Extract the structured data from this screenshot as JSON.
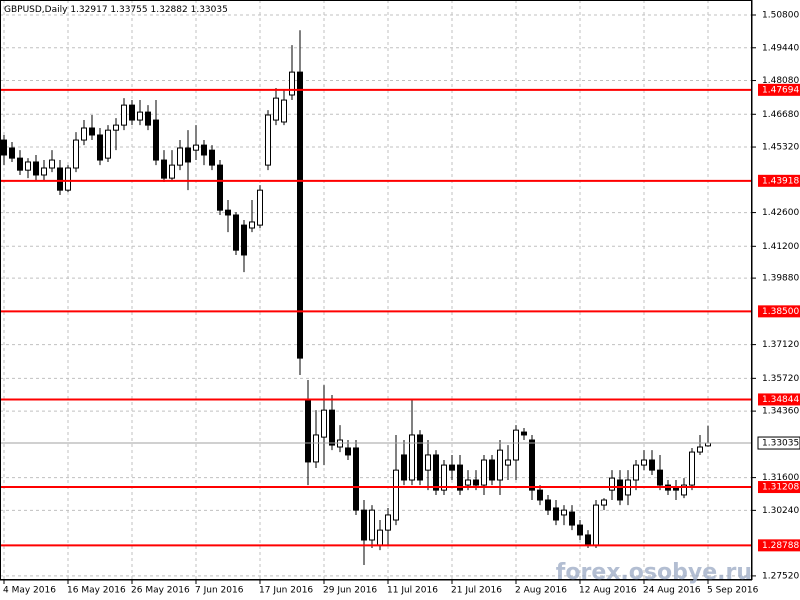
{
  "chart_data": {
    "type": "candlestick",
    "title": "GBPUSD,Daily",
    "watermark": "forex.osobye.ru",
    "categories": [
      "4 May 2016",
      null,
      null,
      null,
      null,
      null,
      null,
      null,
      "16 May 2016",
      null,
      null,
      null,
      null,
      null,
      null,
      null,
      "26 May 2016",
      null,
      null,
      null,
      null,
      null,
      null,
      null,
      "7 Jun 2016",
      null,
      null,
      null,
      null,
      null,
      null,
      null,
      "17 Jun 2016",
      null,
      null,
      null,
      null,
      null,
      null,
      null,
      "29 Jun 2016",
      null,
      null,
      null,
      null,
      null,
      null,
      null,
      "11 Jul 2016",
      null,
      null,
      null,
      null,
      null,
      null,
      null,
      "21 Jul 2016",
      null,
      null,
      null,
      null,
      null,
      null,
      null,
      "2 Aug 2016",
      null,
      null,
      null,
      null,
      null,
      null,
      null,
      "12 Aug 2016",
      null,
      null,
      null,
      null,
      null,
      null,
      null,
      "24 Aug 2016",
      null,
      null,
      null,
      null,
      null,
      null,
      null,
      "5 Sep 2016"
    ],
    "ohlc": [
      [
        1.4561,
        1.4582,
        1.4457,
        1.4499
      ],
      [
        1.4528,
        1.4553,
        1.447,
        1.4486
      ],
      [
        1.4486,
        1.4519,
        1.4416,
        1.4436
      ],
      [
        1.4436,
        1.4486,
        1.4403,
        1.447
      ],
      [
        1.447,
        1.4499,
        1.4395,
        1.4416
      ],
      [
        1.4416,
        1.4478,
        1.4395,
        1.4445
      ],
      [
        1.4445,
        1.4519,
        1.4428,
        1.4478
      ],
      [
        1.4445,
        1.4478,
        1.4333,
        1.4353
      ],
      [
        1.4353,
        1.4457,
        1.4345,
        1.4445
      ],
      [
        1.4445,
        1.4594,
        1.4428,
        1.4561
      ],
      [
        1.4561,
        1.4644,
        1.454,
        1.4611
      ],
      [
        1.4611,
        1.4665,
        1.4561,
        1.4582
      ],
      [
        1.4582,
        1.4611,
        1.4457,
        1.4478
      ],
      [
        1.4486,
        1.4623,
        1.447,
        1.4602
      ],
      [
        1.4602,
        1.4652,
        1.4519,
        1.4623
      ],
      [
        1.4623,
        1.4735,
        1.4602,
        1.4706
      ],
      [
        1.4706,
        1.4727,
        1.4623,
        1.4644
      ],
      [
        1.4644,
        1.4727,
        1.4623,
        1.4677
      ],
      [
        1.4677,
        1.4706,
        1.4602,
        1.4623
      ],
      [
        1.4644,
        1.4727,
        1.4457,
        1.4478
      ],
      [
        1.4478,
        1.4519,
        1.4387,
        1.4403
      ],
      [
        1.4403,
        1.4519,
        1.4395,
        1.4457
      ],
      [
        1.4457,
        1.4561,
        1.4436,
        1.4528
      ],
      [
        1.4528,
        1.4602,
        1.4353,
        1.447
      ],
      [
        1.4519,
        1.4623,
        1.4478,
        1.454
      ],
      [
        1.454,
        1.4561,
        1.4457,
        1.4499
      ],
      [
        1.4519,
        1.454,
        1.4436,
        1.4457
      ],
      [
        1.4457,
        1.4478,
        1.425,
        1.427
      ],
      [
        1.427,
        1.4312,
        1.4179,
        1.425
      ],
      [
        1.425,
        1.4262,
        1.4084,
        1.4104
      ],
      [
        1.4208,
        1.4229,
        1.4013,
        1.4084
      ],
      [
        1.4196,
        1.4312,
        1.4179,
        1.4221
      ],
      [
        1.4208,
        1.4374,
        1.4196,
        1.4353
      ],
      [
        1.4457,
        1.4685,
        1.4436,
        1.4665
      ],
      [
        1.4644,
        1.4777,
        1.4623,
        1.4735
      ],
      [
        1.4636,
        1.4768,
        1.4623,
        1.4727
      ],
      [
        1.4748,
        1.4955,
        1.4727,
        1.4843
      ],
      [
        1.4843,
        1.5017,
        1.3586,
        1.3656
      ],
      [
        1.3482,
        1.3565,
        1.3129,
        1.3225
      ],
      [
        1.3225,
        1.344,
        1.32,
        1.3337
      ],
      [
        1.3328,
        1.3544,
        1.3212,
        1.344
      ],
      [
        1.344,
        1.3503,
        1.3274,
        1.3295
      ],
      [
        1.3287,
        1.3378,
        1.3266,
        1.3316
      ],
      [
        1.3283,
        1.3316,
        1.3233,
        1.3254
      ],
      [
        1.3283,
        1.3316,
        1.3005,
        1.3025
      ],
      [
        1.3025,
        1.3067,
        1.2797,
        1.2901
      ],
      [
        1.2901,
        1.3046,
        1.2868,
        1.3025
      ],
      [
        1.288,
        1.2984,
        1.2859,
        1.2942
      ],
      [
        1.2942,
        1.3034,
        1.288,
        1.3005
      ],
      [
        1.2984,
        1.3337,
        1.2963,
        1.3191
      ],
      [
        1.3254,
        1.3316,
        1.3129,
        1.315
      ],
      [
        1.315,
        1.3482,
        1.3129,
        1.3337
      ],
      [
        1.3337,
        1.3357,
        1.3129,
        1.315
      ],
      [
        1.3191,
        1.3316,
        1.3108,
        1.3254
      ],
      [
        1.3254,
        1.3274,
        1.3088,
        1.3108
      ],
      [
        1.3108,
        1.3233,
        1.3088,
        1.3212
      ],
      [
        1.3212,
        1.3254,
        1.315,
        1.3191
      ],
      [
        1.3212,
        1.3254,
        1.3088,
        1.3108
      ],
      [
        1.3129,
        1.3191,
        1.3108,
        1.315
      ],
      [
        1.315,
        1.3191,
        1.3108,
        1.3129
      ],
      [
        1.3129,
        1.3254,
        1.3088,
        1.3233
      ],
      [
        1.3233,
        1.3254,
        1.3129,
        1.315
      ],
      [
        1.315,
        1.3316,
        1.3088,
        1.3274
      ],
      [
        1.3212,
        1.3295,
        1.315,
        1.3233
      ],
      [
        1.3233,
        1.3378,
        1.315,
        1.3357
      ],
      [
        1.3349,
        1.3366,
        1.3316,
        1.3337
      ],
      [
        1.3316,
        1.3337,
        1.3067,
        1.3108
      ],
      [
        1.3108,
        1.3129,
        1.3046,
        1.3067
      ],
      [
        1.3067,
        1.3088,
        1.3005,
        1.3025
      ],
      [
        1.3034,
        1.3067,
        1.2963,
        1.2984
      ],
      [
        1.3005,
        1.3046,
        1.2963,
        1.3025
      ],
      [
        1.3017,
        1.3046,
        1.2942,
        1.2963
      ],
      [
        1.2963,
        1.2984,
        1.2901,
        1.2922
      ],
      [
        1.2922,
        1.2942,
        1.2868,
        1.288
      ],
      [
        1.288,
        1.3067,
        1.2868,
        1.3046
      ],
      [
        1.3046,
        1.3075,
        1.3025,
        1.3067
      ],
      [
        1.3108,
        1.3191,
        1.3067,
        1.3158
      ],
      [
        1.315,
        1.3191,
        1.3046,
        1.3067
      ],
      [
        1.3088,
        1.3191,
        1.3046,
        1.315
      ],
      [
        1.315,
        1.3233,
        1.3108,
        1.3212
      ],
      [
        1.3212,
        1.3274,
        1.3191,
        1.3233
      ],
      [
        1.3233,
        1.3274,
        1.3171,
        1.3191
      ],
      [
        1.3191,
        1.3254,
        1.3108,
        1.3129
      ],
      [
        1.3129,
        1.315,
        1.3088,
        1.3108
      ],
      [
        1.3117,
        1.315,
        1.3067,
        1.3108
      ],
      [
        1.3088,
        1.3158,
        1.3075,
        1.3129
      ],
      [
        1.3129,
        1.3283,
        1.3108,
        1.3266
      ],
      [
        1.3266,
        1.3337,
        1.3254,
        1.3287
      ],
      [
        1.32917,
        1.33755,
        1.32882,
        1.33035
      ]
    ],
    "up_color": "#ffffff",
    "down_color": "#000000",
    "levels": [
      1.47694,
      1.43918,
      {
        "value": 1.385,
        "label": "1.38500"
      },
      1.34844,
      1.31208,
      1.28788
    ],
    "level_color": "#ff0000",
    "ylim": [
      1.2735,
      1.5134
    ],
    "yticks": [
      {
        "value": 1.508,
        "label": "1.50800"
      },
      {
        "value": 1.4944,
        "label": "1.49440"
      },
      {
        "value": 1.4808,
        "label": "1.48080"
      },
      {
        "value": 1.4668,
        "label": "1.46680"
      },
      {
        "value": 1.4532,
        "label": "1.45320"
      },
      {
        "value": 1.426,
        "label": "1.42600"
      },
      {
        "value": 1.412,
        "label": "1.41200"
      },
      {
        "value": 1.3988,
        "label": "1.39880"
      },
      {
        "value": 1.3712,
        "label": "1.37120"
      },
      {
        "value": 1.3572,
        "label": "1.35720"
      },
      {
        "value": 1.3436,
        "label": "1.34360"
      },
      {
        "value": 1.316,
        "label": "1.31600"
      },
      {
        "value": 1.3024,
        "label": "1.30240"
      },
      {
        "value": 1.2752,
        "label": "1.27520"
      }
    ],
    "grid": true
  }
}
